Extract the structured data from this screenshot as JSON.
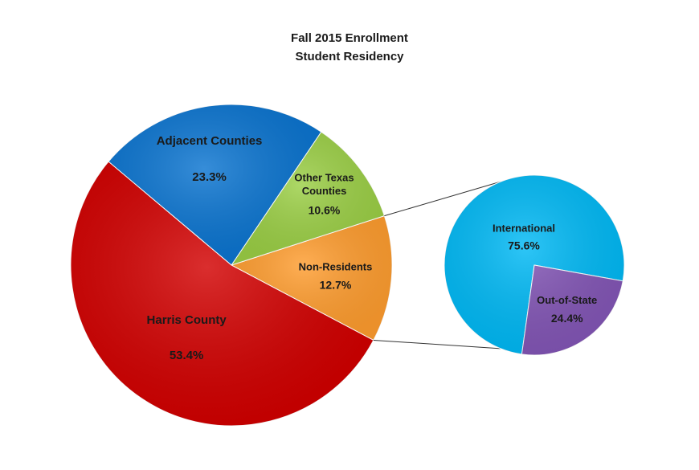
{
  "chart_data": {
    "type": "pie",
    "subtype": "pie-of-pie",
    "title": "Fall 2015 Enrollment",
    "subtitle": "Student Residency",
    "main_pie": {
      "slices": [
        {
          "label": "Harris County",
          "value": 53.4,
          "display": "53.4%",
          "color": "#d20000"
        },
        {
          "label": "Adjacent Counties",
          "value": 23.3,
          "display": "23.3%",
          "color": "#0a74d0"
        },
        {
          "label": "Other Texas Counties",
          "value": 10.6,
          "display": "10.6%",
          "color": "#9bcf45"
        },
        {
          "label": "Non-Residents",
          "value": 12.7,
          "display": "12.7%",
          "color": "#ff9d2f"
        }
      ],
      "exploded_slice": "Non-Residents"
    },
    "secondary_pie": {
      "parent": "Non-Residents",
      "slices": [
        {
          "label": "International",
          "value": 75.6,
          "display": "75.6%",
          "color": "#00b9f5"
        },
        {
          "label": "Out-of-State",
          "value": 24.4,
          "display": "24.4%",
          "color": "#8356b6"
        }
      ]
    },
    "legend": "none"
  }
}
